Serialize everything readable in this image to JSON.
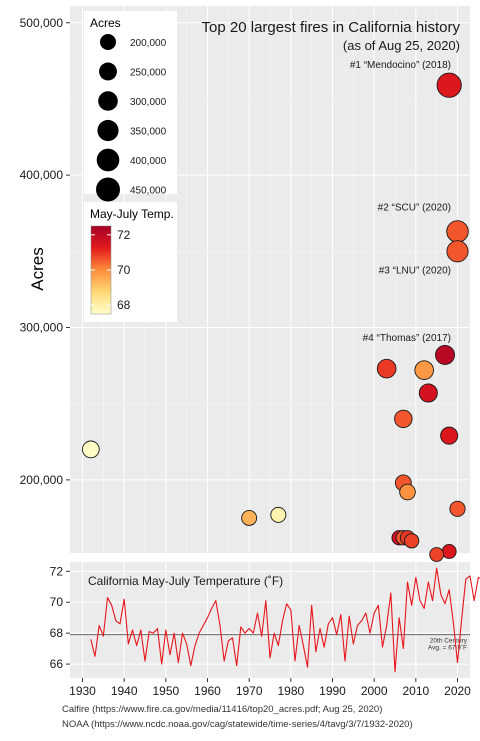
{
  "chart_data": [
    {
      "type": "scatter",
      "title": "Top 20 largest fires in California history",
      "subtitle": "(as of Aug 25, 2020)",
      "ylabel": "Acres",
      "xlim": [
        1927,
        2023
      ],
      "ylim": [
        152000,
        511000
      ],
      "yticks": [
        200000,
        300000,
        400000,
        500000
      ],
      "ytick_labels": [
        "200,000",
        "300,000",
        "400,000",
        "500,000"
      ],
      "size_legend": {
        "title": "Acres",
        "values": [
          200000,
          250000,
          300000,
          350000,
          400000,
          450000
        ],
        "labels": [
          "200,000",
          "250,000",
          "300,000",
          "350,000",
          "400,000",
          "450,000"
        ]
      },
      "color_legend": {
        "title": "May-July Temp.",
        "range": [
          67.5,
          72.5
        ],
        "ticks": [
          68,
          70,
          72
        ],
        "tick_labels": [
          "68",
          "70",
          "72"
        ]
      },
      "points": [
        {
          "year": 1932,
          "acres": 220000,
          "temp": 67.6
        },
        {
          "year": 1970,
          "acres": 175000,
          "temp": 69.4
        },
        {
          "year": 1977,
          "acres": 177000,
          "temp": 67.9
        },
        {
          "year": 2003,
          "acres": 273000,
          "temp": 70.9
        },
        {
          "year": 2006,
          "acres": 162000,
          "temp": 71.7
        },
        {
          "year": 2007,
          "acres": 240000,
          "temp": 70.6
        },
        {
          "year": 2007,
          "acres": 198000,
          "temp": 70.6
        },
        {
          "year": 2007,
          "acres": 162000,
          "temp": 70.6
        },
        {
          "year": 2008,
          "acres": 192000,
          "temp": 69.9
        },
        {
          "year": 2008,
          "acres": 162000,
          "temp": 70.9
        },
        {
          "year": 2009,
          "acres": 160000,
          "temp": 70.8
        },
        {
          "year": 2012,
          "acres": 272000,
          "temp": 69.8
        },
        {
          "year": 2013,
          "acres": 257000,
          "temp": 71.6
        },
        {
          "year": 2015,
          "acres": 151000,
          "temp": 70.8
        },
        {
          "year": 2017,
          "acres": 282000,
          "temp": 72.1
        },
        {
          "year": 2018,
          "acres": 459000,
          "temp": 71.4
        },
        {
          "year": 2018,
          "acres": 229000,
          "temp": 71.4
        },
        {
          "year": 2018,
          "acres": 153000,
          "temp": 71.4
        },
        {
          "year": 2020,
          "acres": 363000,
          "temp": 70.6
        },
        {
          "year": 2020,
          "acres": 350000,
          "temp": 70.6
        },
        {
          "year": 2020,
          "acres": 181000,
          "temp": 70.6
        }
      ],
      "annotations": [
        {
          "text": "#1 “Mendocino” (2018)",
          "year": 2018,
          "acres": 459000
        },
        {
          "text": "#2 “SCU” (2020)",
          "year": 2020,
          "acres": 363000
        },
        {
          "text": "#3 “LNU” (2020)",
          "year": 2020,
          "acres": 350000
        },
        {
          "text": "#4 “Thomas” (2017)",
          "year": 2017,
          "acres": 282000
        }
      ]
    },
    {
      "type": "line",
      "title": "California May-July Temperature (˚F)",
      "xlim": [
        1927,
        2023
      ],
      "ylim": [
        65.1,
        72.6
      ],
      "yticks": [
        66,
        68,
        70,
        72
      ],
      "ytick_labels": [
        "66",
        "68",
        "70",
        "72"
      ],
      "xticks": [
        1930,
        1940,
        1950,
        1960,
        1970,
        1980,
        1990,
        2000,
        2010,
        2020
      ],
      "xtick_labels": [
        "1930",
        "1940",
        "1950",
        "1960",
        "1970",
        "1980",
        "1990",
        "2000",
        "2010",
        "2020"
      ],
      "color": "#e8151b",
      "reference": {
        "value": 67.9,
        "label_line1": "20th Century",
        "label_line2": "Avg. = 67.9˚F"
      },
      "start_year": 1932,
      "values": [
        67.6,
        66.5,
        68.5,
        67.8,
        70.3,
        69.8,
        68.8,
        68.6,
        70.2,
        67.3,
        68.2,
        67.2,
        68.2,
        66.2,
        68.1,
        68.0,
        68.3,
        66.0,
        68.2,
        66.6,
        68.0,
        66.1,
        68.0,
        67.3,
        65.9,
        67.2,
        68.0,
        68.5,
        69.0,
        69.6,
        70.1,
        68.5,
        66.2,
        67.5,
        67.7,
        65.9,
        68.4,
        68.0,
        68.3,
        68.0,
        69.3,
        67.8,
        70.1,
        66.4,
        68.0,
        67.2,
        68.8,
        69.9,
        69.5,
        66.2,
        68.5,
        67.2,
        65.8,
        69.8,
        66.8,
        68.3,
        67.1,
        68.6,
        69.0,
        67.9,
        69.2,
        66.2,
        69.1,
        67.3,
        68.5,
        68.8,
        69.3,
        68.0,
        69.3,
        69.8,
        67.1,
        68.5,
        70.6,
        65.5,
        69.0,
        67.0,
        71.3,
        69.8,
        71.6,
        70.1,
        69.6,
        71.3,
        70.1,
        72.2,
        70.5,
        69.9,
        70.8,
        68.7,
        66.1,
        68.9,
        71.5,
        71.7,
        70.1,
        71.6,
        71.5,
        71.4,
        69.9,
        70.9,
        68.3,
        70.6
      ]
    }
  ],
  "sources": [
    "Calfire (https://www.fire.ca.gov/media/11416/top20_acres.pdf; Aug 25, 2020)",
    "NOAA (https://www.ncdc.noaa.gov/cag/statewide/time-series/4/tavg/3/7/1932-2020)"
  ]
}
